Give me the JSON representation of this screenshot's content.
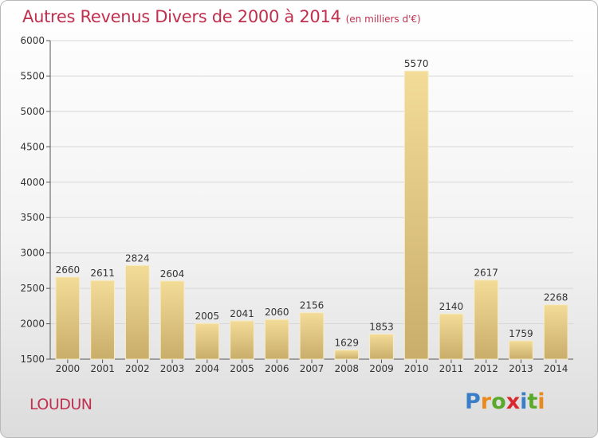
{
  "chart_data": {
    "type": "bar",
    "title": "Autres Revenus Divers de 2000 à 2014",
    "unit_note": "(en milliers d'€)",
    "categories": [
      "2000",
      "2001",
      "2002",
      "2003",
      "2004",
      "2005",
      "2006",
      "2007",
      "2008",
      "2009",
      "2010",
      "2011",
      "2012",
      "2013",
      "2014"
    ],
    "values": [
      2660,
      2611,
      2824,
      2604,
      2005,
      2041,
      2060,
      2156,
      1629,
      1853,
      5570,
      2140,
      2617,
      1759,
      2268
    ],
    "ylim": [
      1500,
      6000
    ],
    "yticks": [
      1500,
      2000,
      2500,
      3000,
      3500,
      4000,
      4500,
      5000,
      5500,
      6000
    ],
    "grid": true,
    "bar_color": "#e6cc8a"
  },
  "footer": {
    "place": "LOUDUN",
    "logo_letters": [
      "P",
      "r",
      "o",
      "x",
      "i",
      "t",
      "i"
    ],
    "logo_colors": [
      "#3a7ec8",
      "#e98a1f",
      "#5ba92b",
      "#d9292f",
      "#3a7ec8",
      "#5ba92b",
      "#e98a1f"
    ]
  },
  "colors": {
    "title": "#c0304f",
    "grid": "#d6d6d6",
    "axis_text": "#333333"
  }
}
